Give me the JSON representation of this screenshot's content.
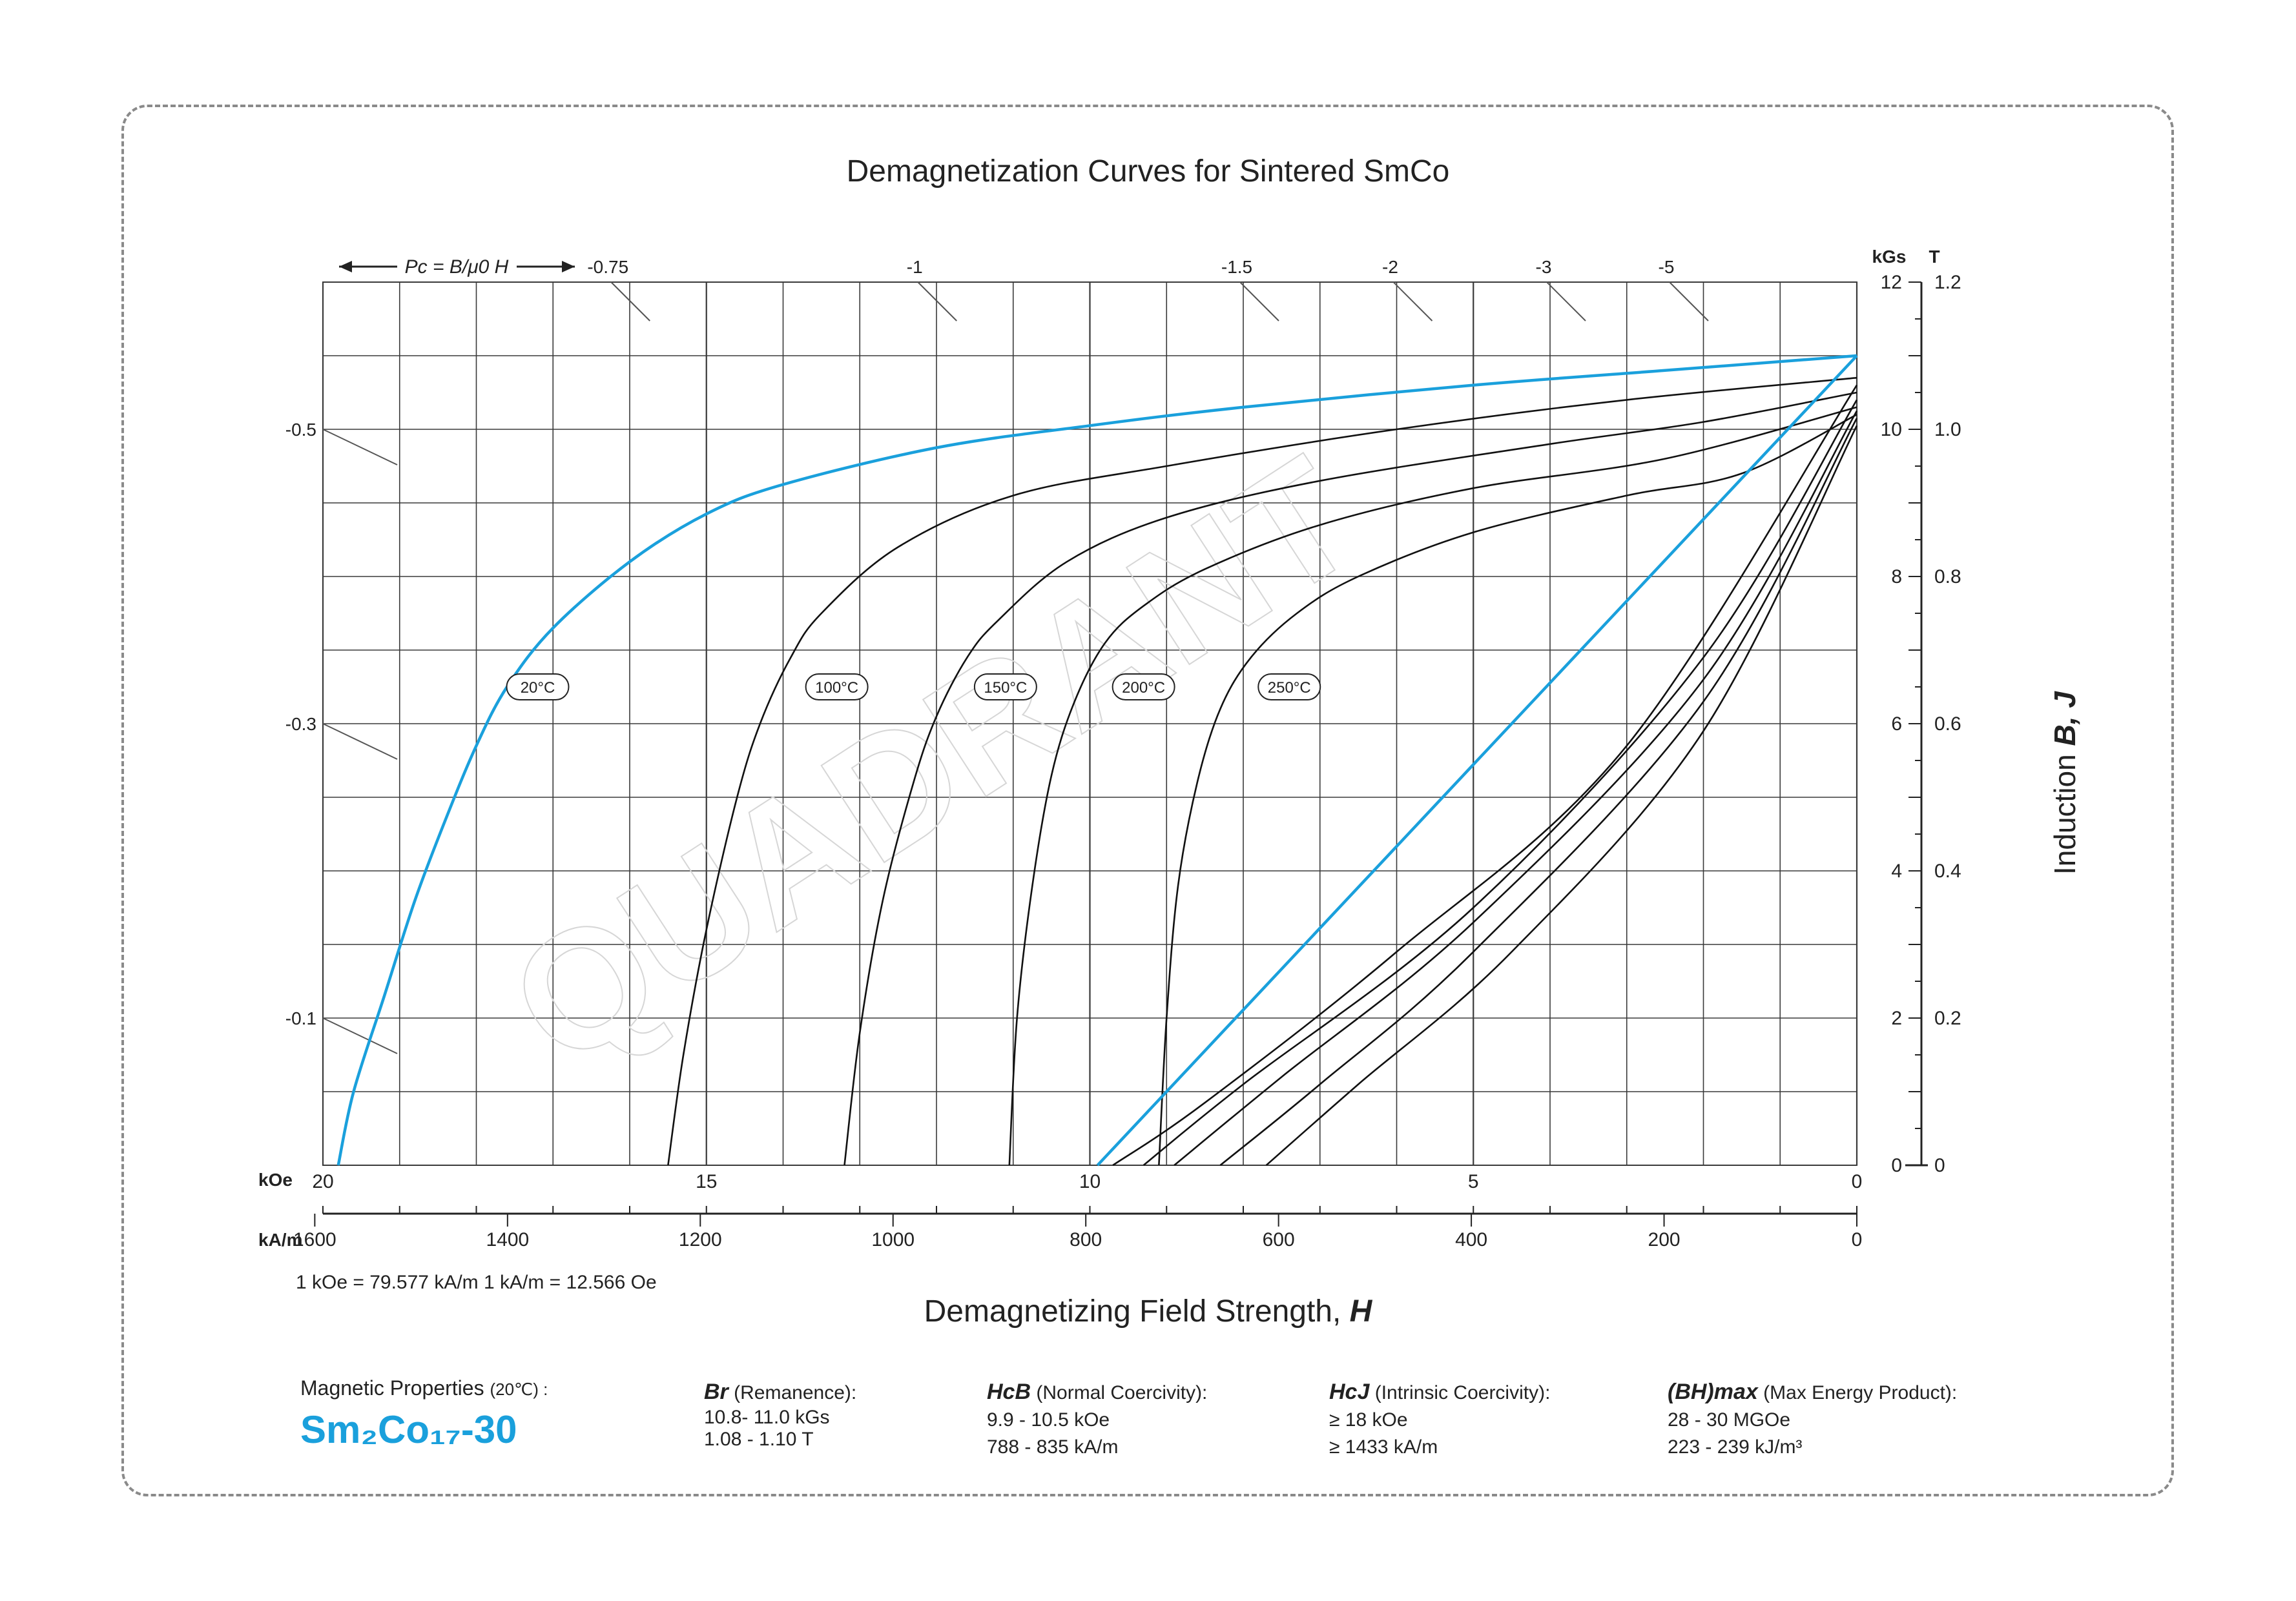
{
  "title": "Demagnetization Curves for Sintered SmCo",
  "colors": {
    "accent": "#1aa0dc",
    "curve": "#111111",
    "grid": "#333333",
    "frame": "#8a8a8a"
  },
  "chart_data": {
    "type": "line",
    "title": "Demagnetization Curves for Sintered SmCo",
    "xlabel": "Demagnetizing Field Strength, H",
    "ylabel": "Induction B, J",
    "x_unit_primary": "kOe",
    "x_unit_secondary": "kA/m",
    "y_unit_primary": "kGs",
    "y_unit_secondary": "T",
    "xlim_kOe": [
      20,
      0
    ],
    "ylim_kGs": [
      0,
      12
    ],
    "x_ticks_kOe": [
      "20",
      "15",
      "10",
      "5",
      "0"
    ],
    "x_ticks_kAm": [
      "1600",
      "1400",
      "1200",
      "1000",
      "800",
      "600",
      "400",
      "200",
      "0"
    ],
    "y_ticks_kGs": [
      "0",
      "2",
      "4",
      "6",
      "8",
      "10",
      "12"
    ],
    "y_ticks_T": [
      "0",
      "0.2",
      "0.4",
      "0.6",
      "0.8",
      "1.0",
      "1.2"
    ],
    "pc_label": "Pc = B/μ0 H",
    "pc_ticks_top": [
      "-0.75",
      "-1",
      "-1.5",
      "-2",
      "-3",
      "-5"
    ],
    "pc_ticks_left": [
      "-0.5",
      "-0.3",
      "-0.1"
    ],
    "grid": true,
    "series": [
      {
        "name": "20°C",
        "kind": "J",
        "color": "#1aa0dc",
        "points": [
          [
            19.8,
            0
          ],
          [
            19.6,
            1.0
          ],
          [
            19.2,
            2.3
          ],
          [
            18.8,
            3.6
          ],
          [
            18.4,
            4.7
          ],
          [
            18.0,
            5.7
          ],
          [
            17.6,
            6.5
          ],
          [
            17.0,
            7.3
          ],
          [
            16.0,
            8.2
          ],
          [
            15.0,
            8.85
          ],
          [
            14.0,
            9.25
          ],
          [
            12.0,
            9.75
          ],
          [
            10.0,
            10.05
          ],
          [
            8.0,
            10.3
          ],
          [
            5.0,
            10.6
          ],
          [
            2.5,
            10.8
          ],
          [
            0,
            11.0
          ]
        ]
      },
      {
        "name": "20°C",
        "kind": "B",
        "color": "#1aa0dc",
        "points": [
          [
            9.9,
            0
          ],
          [
            0,
            11.0
          ]
        ]
      },
      {
        "name": "100°C",
        "kind": "J",
        "color": "#111111",
        "points": [
          [
            15.5,
            0
          ],
          [
            15.3,
            1.5
          ],
          [
            15.0,
            3.2
          ],
          [
            14.6,
            5.0
          ],
          [
            14.3,
            6.0
          ],
          [
            13.9,
            6.9
          ],
          [
            13.5,
            7.5
          ],
          [
            12.5,
            8.4
          ],
          [
            11.0,
            9.1
          ],
          [
            9.0,
            9.5
          ],
          [
            6.0,
            10.0
          ],
          [
            3.0,
            10.4
          ],
          [
            0,
            10.7
          ]
        ]
      },
      {
        "name": "150°C",
        "kind": "J",
        "color": "#111111",
        "points": [
          [
            13.2,
            0
          ],
          [
            13.0,
            1.8
          ],
          [
            12.7,
            3.6
          ],
          [
            12.3,
            5.2
          ],
          [
            12.0,
            6.1
          ],
          [
            11.6,
            6.9
          ],
          [
            11.2,
            7.4
          ],
          [
            10.3,
            8.2
          ],
          [
            9.0,
            8.8
          ],
          [
            7.0,
            9.3
          ],
          [
            4.0,
            9.8
          ],
          [
            2.0,
            10.1
          ],
          [
            0,
            10.5
          ]
        ]
      },
      {
        "name": "200°C",
        "kind": "J",
        "color": "#111111",
        "points": [
          [
            11.05,
            0
          ],
          [
            10.95,
            2.0
          ],
          [
            10.75,
            3.8
          ],
          [
            10.5,
            5.3
          ],
          [
            10.2,
            6.3
          ],
          [
            9.8,
            7.1
          ],
          [
            9.3,
            7.6
          ],
          [
            8.5,
            8.1
          ],
          [
            7.0,
            8.7
          ],
          [
            5.0,
            9.2
          ],
          [
            2.5,
            9.6
          ],
          [
            0,
            10.3
          ]
        ]
      },
      {
        "name": "250°C",
        "kind": "J",
        "color": "#111111",
        "points": [
          [
            9.1,
            0
          ],
          [
            9.0,
            2.0
          ],
          [
            8.85,
            3.8
          ],
          [
            8.6,
            5.2
          ],
          [
            8.3,
            6.2
          ],
          [
            7.9,
            6.9
          ],
          [
            7.3,
            7.5
          ],
          [
            6.5,
            8.0
          ],
          [
            5.0,
            8.6
          ],
          [
            3.0,
            9.1
          ],
          [
            1.5,
            9.4
          ],
          [
            0,
            10.2
          ]
        ]
      },
      {
        "name": "100°C",
        "kind": "B",
        "color": "#111111",
        "points": [
          [
            9.7,
            0
          ],
          [
            8.5,
            0.85
          ],
          [
            6.0,
            2.9
          ],
          [
            3.0,
            5.7
          ],
          [
            0,
            10.6
          ]
        ]
      },
      {
        "name": "150°C",
        "kind": "B",
        "color": "#111111",
        "points": [
          [
            9.3,
            0
          ],
          [
            8.0,
            1.1
          ],
          [
            5.0,
            3.5
          ],
          [
            2.0,
            6.9
          ],
          [
            0,
            10.4
          ]
        ]
      },
      {
        "name": "200°C",
        "kind": "B",
        "color": "#111111",
        "points": [
          [
            8.9,
            0
          ],
          [
            7.5,
            1.2
          ],
          [
            5.0,
            3.3
          ],
          [
            2.0,
            6.6
          ],
          [
            0,
            10.25
          ]
        ]
      },
      {
        "name": "250°C",
        "kind": "B",
        "color": "#111111",
        "points": [
          [
            8.3,
            0
          ],
          [
            7.0,
            1.1
          ],
          [
            5.0,
            2.9
          ],
          [
            2.0,
            6.3
          ],
          [
            0,
            10.15
          ]
        ]
      },
      {
        "name": "",
        "kind": "B",
        "color": "#111111",
        "points": [
          [
            7.7,
            0
          ],
          [
            6.5,
            1.1
          ],
          [
            4.5,
            2.9
          ],
          [
            2.0,
            5.9
          ],
          [
            0,
            10.05
          ]
        ]
      }
    ],
    "curve_labels": [
      {
        "text": "20°C",
        "x": 17.2,
        "y": 6.5
      },
      {
        "text": "100°C",
        "x": 13.3,
        "y": 6.5
      },
      {
        "text": "150°C",
        "x": 11.1,
        "y": 6.5
      },
      {
        "text": "200°C",
        "x": 9.3,
        "y": 6.5
      },
      {
        "text": "250°C",
        "x": 7.4,
        "y": 6.5
      }
    ]
  },
  "conversion_note": "1 kOe = 79.577 kA/m   1 kA/m = 12.566 Oe",
  "x_axis_title": "Demagnetizing Field Strength,",
  "x_axis_symbol": "H",
  "y_axis_title": "Induction",
  "y_axis_symbol": "B, J",
  "properties": {
    "heading": "Magnetic Properties",
    "heading_temp": "(20℃) :",
    "grade": "Sm₂Co₁₇-30",
    "br": {
      "symbol": "Br",
      "label": "(Remanence):",
      "line1": "10.8- 11.0 kGs",
      "line2": "1.08 - 1.10 T"
    },
    "hcb": {
      "symbol": "HcB",
      "label": "(Normal Coercivity):",
      "line1": "9.9 - 10.5 kOe",
      "line2": "788 - 835 kA/m"
    },
    "hcj": {
      "symbol": "HcJ",
      "label": "(Intrinsic Coercivity):",
      "line1": "≥ 18 kOe",
      "line2": "≥ 1433 kA/m"
    },
    "bhmax": {
      "symbol": "(BH)max",
      "label": "(Max Energy Product):",
      "line1": "28 - 30 MGOe",
      "line2": "223 - 239 kJ/m³"
    }
  },
  "watermark": "QUADRANT"
}
